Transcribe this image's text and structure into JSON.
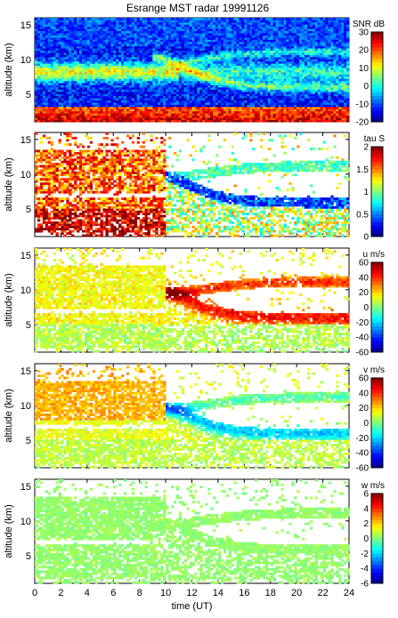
{
  "title": "Esrange MST radar 19991126",
  "chart_data": [
    {
      "type": "heatmap",
      "id": "snr",
      "variable": "SNR",
      "colorbar_label": "SNR dB",
      "colorbar_range": [
        -20,
        30
      ],
      "colorbar_ticks": [
        -20,
        -10,
        0,
        10,
        20,
        30
      ],
      "ylabel": "altitude (km)",
      "ylim": [
        1,
        16
      ],
      "yticks": [
        5,
        10,
        15
      ],
      "xlim": [
        0,
        24
      ],
      "xticks": [
        0,
        2,
        4,
        6,
        8,
        10,
        12,
        14,
        16,
        18,
        20,
        22,
        24
      ],
      "xlabel": ""
    },
    {
      "type": "heatmap",
      "id": "tau",
      "variable": "tau",
      "colorbar_label": "tau S",
      "colorbar_range": [
        0,
        2
      ],
      "colorbar_ticks": [
        0,
        0.5,
        1,
        1.5,
        2
      ],
      "ylabel": "altitude (km)",
      "ylim": [
        1,
        16
      ],
      "yticks": [
        5,
        10,
        15
      ],
      "xlim": [
        0,
        24
      ],
      "xticks": [
        0,
        2,
        4,
        6,
        8,
        10,
        12,
        14,
        16,
        18,
        20,
        22,
        24
      ],
      "xlabel": ""
    },
    {
      "type": "heatmap",
      "id": "u",
      "variable": "u",
      "colorbar_label": "u m/s",
      "colorbar_range": [
        -60,
        60
      ],
      "colorbar_ticks": [
        -60,
        -40,
        -20,
        0,
        20,
        40,
        60
      ],
      "ylabel": "altitude (km)",
      "ylim": [
        1,
        16
      ],
      "yticks": [
        5,
        10,
        15
      ],
      "xlim": [
        0,
        24
      ],
      "xticks": [
        0,
        2,
        4,
        6,
        8,
        10,
        12,
        14,
        16,
        18,
        20,
        22,
        24
      ],
      "xlabel": ""
    },
    {
      "type": "heatmap",
      "id": "v",
      "variable": "v",
      "colorbar_label": "v m/s",
      "colorbar_range": [
        -60,
        60
      ],
      "colorbar_ticks": [
        -60,
        -40,
        -20,
        0,
        20,
        40,
        60
      ],
      "ylabel": "altitude (km)",
      "ylim": [
        1,
        16
      ],
      "yticks": [
        5,
        10,
        15
      ],
      "xlim": [
        0,
        24
      ],
      "xticks": [
        0,
        2,
        4,
        6,
        8,
        10,
        12,
        14,
        16,
        18,
        20,
        22,
        24
      ],
      "xlabel": ""
    },
    {
      "type": "heatmap",
      "id": "w",
      "variable": "w",
      "colorbar_label": "w m/s",
      "colorbar_range": [
        -6,
        6
      ],
      "colorbar_ticks": [
        -6,
        -4,
        -2,
        0,
        2,
        4,
        6
      ],
      "ylabel": "altitude (km)",
      "ylim": [
        1,
        16
      ],
      "yticks": [
        5,
        10,
        15
      ],
      "xlim": [
        0,
        24
      ],
      "xticks": [
        0,
        2,
        4,
        6,
        8,
        10,
        12,
        14,
        16,
        18,
        20,
        22,
        24
      ],
      "xlabel": "time (UT)"
    }
  ]
}
